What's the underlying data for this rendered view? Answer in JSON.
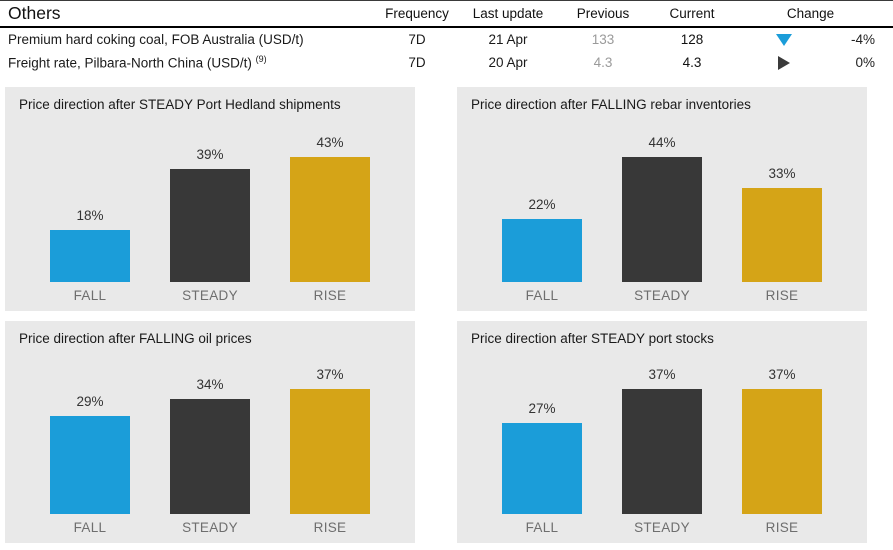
{
  "table": {
    "title": "Others",
    "col_headers": {
      "frequency": "Frequency",
      "last_update": "Last update",
      "previous": "Previous",
      "current": "Current",
      "change": "Change"
    },
    "rows": [
      {
        "label": "Premium hard coking coal, FOB Australia (USD/t)",
        "label_sup": "",
        "frequency": "7D",
        "last_update": "21 Apr",
        "previous": "133",
        "current": "128",
        "change_direction": "down",
        "change_pct": "-4%"
      },
      {
        "label": "Freight rate, Pilbara-North China (USD/t)",
        "label_sup": "(9)",
        "frequency": "7D",
        "last_update": "20 Apr",
        "previous": "4.3",
        "current": "4.3",
        "change_direction": "flat",
        "change_pct": "0%"
      }
    ]
  },
  "colors": {
    "bar_colors": [
      "#1b9dd9",
      "#383838",
      "#d5a417"
    ],
    "panel_bg": "#e9e9e9",
    "down_arrow": "#1b9dd9",
    "flat_arrow": "#3a3a3a"
  },
  "chart_data": [
    {
      "type": "bar",
      "title": "Price direction after STEADY Port Hedland shipments",
      "categories": [
        "FALL",
        "STEADY",
        "RISE"
      ],
      "values": [
        18,
        39,
        43
      ],
      "unit": "%",
      "ylim": [
        0,
        50
      ],
      "grid": false,
      "legend": "none"
    },
    {
      "type": "bar",
      "title": "Price direction after FALLING rebar inventories",
      "categories": [
        "FALL",
        "STEADY",
        "RISE"
      ],
      "values": [
        22,
        44,
        33
      ],
      "unit": "%",
      "ylim": [
        0,
        50
      ],
      "grid": false,
      "legend": "none"
    },
    {
      "type": "bar",
      "title": "Price direction after FALLING oil prices",
      "categories": [
        "FALL",
        "STEADY",
        "RISE"
      ],
      "values": [
        29,
        34,
        37
      ],
      "unit": "%",
      "ylim": [
        0,
        50
      ],
      "grid": false,
      "legend": "none"
    },
    {
      "type": "bar",
      "title": "Price direction after STEADY port stocks",
      "categories": [
        "FALL",
        "STEADY",
        "RISE"
      ],
      "values": [
        27,
        37,
        37
      ],
      "unit": "%",
      "ylim": [
        0,
        50
      ],
      "grid": false,
      "legend": "none"
    }
  ]
}
